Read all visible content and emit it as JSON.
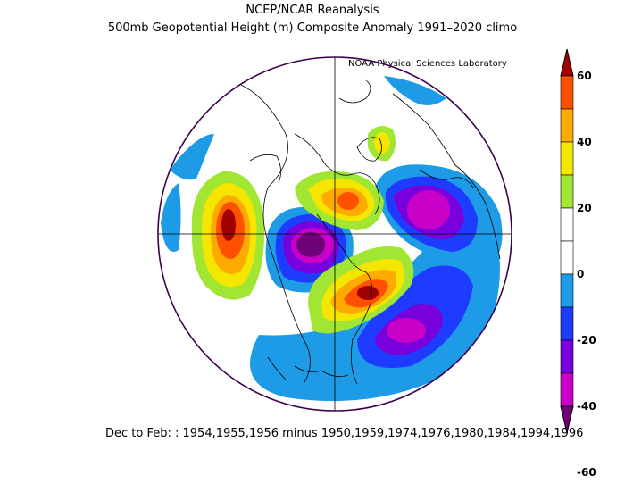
{
  "header": {
    "title": "NCEP/NCAR Reanalysis",
    "subtitle": "500mb Geopotential Height (m) Composite Anomaly 1991–2020 climo",
    "credit": "NOAA Physical Sciences Laboratory"
  },
  "footer": {
    "text": "Dec to Feb: : 1954,1955,1956 minus 1950,1959,1974,1976,1980,1984,1994,1996"
  },
  "colorbar": {
    "labels": [
      "60",
      "40",
      "20",
      "0",
      "-20",
      "-40",
      "-60"
    ],
    "colors": [
      "#a00000",
      "#ff5000",
      "#ffaa00",
      "#f5e600",
      "#a0e632",
      "#ffffff",
      "#ffffff",
      "#1e9be6",
      "#1e3cff",
      "#7800dc",
      "#c800c8",
      "#6e0078"
    ]
  },
  "map": {
    "projection": "north-polar-stereographic",
    "variable": "500mb geopotential height anomaly",
    "units": "m"
  }
}
